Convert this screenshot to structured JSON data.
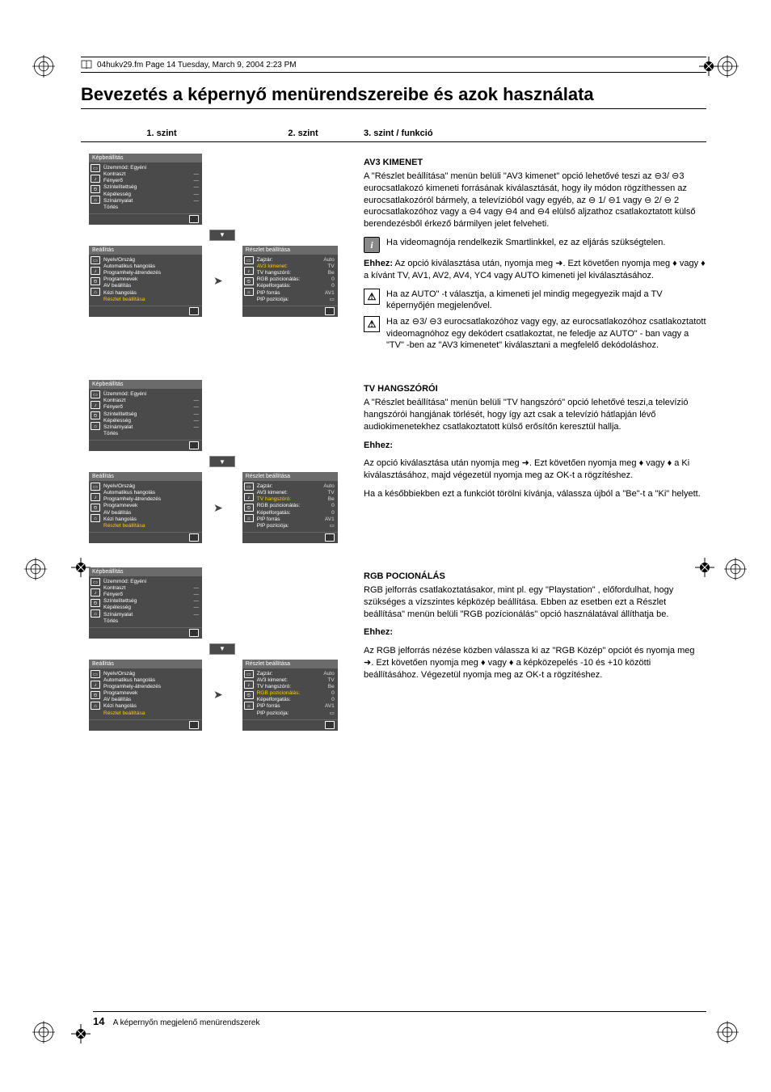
{
  "header": {
    "filename": "04hukv29.fm  Page 14  Tuesday, March 9, 2004  2:23 PM"
  },
  "title": "Bevezetés a képernyő menürendszereibe és azok használata",
  "column_headers": {
    "c1": "1. szint",
    "c2": "2. szint",
    "c3": "3. szint / funkció"
  },
  "menus": {
    "kepbeallitas": {
      "title": "Képbeállítás",
      "rows": [
        {
          "l": "Üzemmód: Egyéni",
          "v": ""
        },
        {
          "l": "Kontraszt",
          "v": "—"
        },
        {
          "l": "Fényerő",
          "v": "—"
        },
        {
          "l": "Színtelítettség",
          "v": "—"
        },
        {
          "l": "Képélesség",
          "v": "—"
        },
        {
          "l": "Színárnyalat",
          "v": "—"
        },
        {
          "l": "Törlés",
          "v": ""
        }
      ]
    },
    "beallitas": {
      "title": "Beállítás",
      "rows": [
        {
          "l": "Nyelv/Ország",
          "v": ""
        },
        {
          "l": "Automatikus hangolás",
          "v": ""
        },
        {
          "l": "Programhely-átrendezés",
          "v": ""
        },
        {
          "l": "Programnevek",
          "v": ""
        },
        {
          "l": "AV beállítás",
          "v": ""
        },
        {
          "l": "Kézi hangolás",
          "v": ""
        },
        {
          "l": "Részlet beállítása",
          "v": "",
          "hl": true
        }
      ]
    },
    "reszlet_a": {
      "title": "Részlet beállítása",
      "rows": [
        {
          "l": "Zajzár:",
          "v": "Auto"
        },
        {
          "l": "AV3 kimenet:",
          "v": "TV",
          "hl": true
        },
        {
          "l": "TV hangszóró:",
          "v": "Be"
        },
        {
          "l": "RGB pozicionálás:",
          "v": "0"
        },
        {
          "l": "Képelforgatás:",
          "v": "0"
        },
        {
          "l": "PIP forrás",
          "v": "AV1"
        },
        {
          "l": "PIP pozíciója:",
          "v": "▭"
        }
      ]
    },
    "reszlet_b": {
      "title": "Részlet beállítása",
      "rows": [
        {
          "l": "Zajzár:",
          "v": "Auto"
        },
        {
          "l": "AV3 kimenet:",
          "v": "TV"
        },
        {
          "l": "TV hangszóró:",
          "v": "Be",
          "hl": true
        },
        {
          "l": "RGB pozicionálás:",
          "v": "0"
        },
        {
          "l": "Képelforgatás:",
          "v": "0"
        },
        {
          "l": "PIP forrás",
          "v": "AV1"
        },
        {
          "l": "PIP pozíciója:",
          "v": "▭"
        }
      ]
    },
    "reszlet_c": {
      "title": "Részlet beállítása",
      "rows": [
        {
          "l": "Zajzár:",
          "v": "Auto"
        },
        {
          "l": "AV3 kimenet:",
          "v": "TV"
        },
        {
          "l": "TV hangszóró:",
          "v": "Be"
        },
        {
          "l": "RGB pozicionálás:",
          "v": "0",
          "hl": true
        },
        {
          "l": "Képelforgatás:",
          "v": "0"
        },
        {
          "l": "PIP forrás",
          "v": "AV1"
        },
        {
          "l": "PIP pozíciója:",
          "v": "▭"
        }
      ]
    }
  },
  "sections": {
    "av3": {
      "heading": "AV3 KIMENET",
      "p1": "A \"Részlet beállítása\" menün belüli \"AV3 kimenet\" opció lehetővé teszi az ⊖3/ ⊖3 eurocsatlakozó kimeneti forrásának kiválasztását, hogy ily módon rögzíthessen az eurocsatlakozóról bármely, a televízióból vagy egyéb, az ⊖ 1/ ⊖1 vagy ⊖ 2/ ⊖ 2 eurocsatlakozóhoz vagy a ⊖4 vagy ⊖4 and ⊖4 elülső aljzathoz csatlakoztatott külső berendezésből érkező bármilyen jelet felveheti.",
      "note_info": "Ha videomagnója rendelkezik Smartlinkkel, ez az eljárás szükségtelen.",
      "ehhez_label": "Ehhez:",
      "ehhez": " Az opció kiválasztása után, nyomja meg ➜. Ezt követően nyomja meg ♦ vagy ♦ a kívánt TV, AV1, AV2, AV4, YC4 vagy AUTO kimeneti jel kiválasztásához.",
      "warn1": "Ha az AUTO\" -t választja, a kimeneti jel mindig megegyezik majd a TV képernyőjén megjelenővel.",
      "warn2": "Ha az ⊖3/ ⊖3 eurocsatlakozóhoz vagy egy, az eurocsatlakozóhoz csatlakoztatott videomagnóhoz egy dekódert csatlakoztat, ne feledje az AUTO\" - ban vagy a  \"TV\" -ben az \"AV3 kimenetet\" kiválasztani a megfelelő dekódoláshoz."
    },
    "tv": {
      "heading": "TV HANGSZÓRÓI",
      "p1": "A \"Részlet beállítása\" menün belüli \"TV hangszóró\" opció lehetővé teszi,a televízió hangszórói hangjának törlését, hogy így azt csak a televízió hátlapján lévő audiokimenetekhez csatlakoztatott külső erősítőn keresztül hallja.",
      "ehhez_label": "Ehhez:",
      "ehhez": "Az opció kiválasztása után nyomja meg ➜. Ezt követően nyomja meg ♦ vagy ♦ a Ki kiválasztásához, majd végezetül nyomja meg az OK-t a rögzítéshez.",
      "p2": "Ha a későbbiekben ezt a funkciót törölni kívánja, válassza újból a  \"Be\"-t a \"Ki\"  helyett."
    },
    "rgb": {
      "heading": "RGB POCIONÁLÁS",
      "p1": "RGB jelforrás csatlakoztatásakor, mint pl. egy \"Playstation\" , előfordulhat, hogy szükséges a vízszintes képközép beállítása. Ebben az esetben ezt a Részlet beállítása\" menün belüli \"RGB pozícionálás\" opció használatával állíthatja be.",
      "ehhez_label": "Ehhez:",
      "ehhez": "Az RGB jelforrás nézése közben válassza ki az \"RGB Közép\" opciót és nyomja meg ➜. Ezt követően nyomja meg ♦ vagy ♦ a képközepelés -10 és +10 közötti beállításához. Végezetül nyomja meg az OK-t a rögzítéshez."
    }
  },
  "footer": {
    "page": "14",
    "text": "A képernyőn megjelenő menürendszerek"
  },
  "colors": {
    "menu_bg": "#4a4a4a",
    "menu_title_bg": "#6b6b6b",
    "highlight": "#ffcc00",
    "note_info_bg": "#888888"
  }
}
